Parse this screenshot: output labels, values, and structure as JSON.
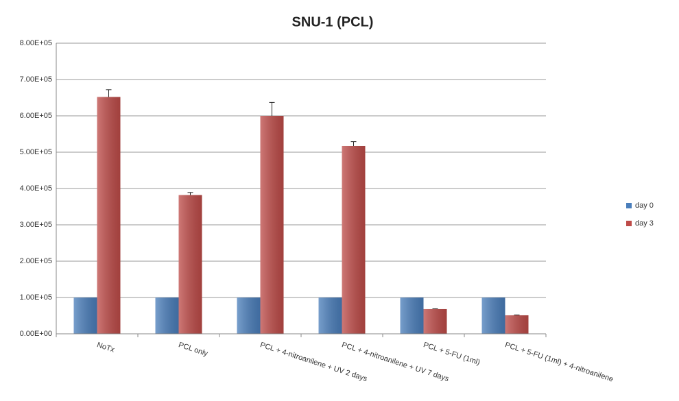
{
  "chart_data": {
    "type": "bar",
    "title": "SNU-1 (PCL)",
    "categories": [
      "NoTx",
      "PCL only",
      "PCL + 4-nitroanilene + UV 2 days",
      "PCL + 4-nitroanilene + UV 7 days",
      "PCL + 5-FU (1ml)",
      "PCL + 5-FU (1ml) + 4-nitroanilene"
    ],
    "series": [
      {
        "name": "day 0",
        "color": "#4a7ebb",
        "values": [
          100000,
          100000,
          100000,
          100000,
          100000,
          100000
        ]
      },
      {
        "name": "day 3",
        "color": "#be4b48",
        "values": [
          652000,
          382000,
          600000,
          517000,
          68000,
          51000
        ],
        "errors": [
          20000,
          7000,
          37000,
          12000,
          1000,
          1000
        ]
      }
    ],
    "ylim": [
      0,
      800000
    ],
    "yticks": [
      {
        "value": 0,
        "label": "0.00E+00"
      },
      {
        "value": 100000,
        "label": "1.00E+05"
      },
      {
        "value": 200000,
        "label": "2.00E+05"
      },
      {
        "value": 300000,
        "label": "3.00E+05"
      },
      {
        "value": 400000,
        "label": "4.00E+05"
      },
      {
        "value": 500000,
        "label": "5.00E+05"
      },
      {
        "value": 600000,
        "label": "6.00E+05"
      },
      {
        "value": 700000,
        "label": "7.00E+05"
      },
      {
        "value": 800000,
        "label": "8.00E+05"
      }
    ],
    "grid": true,
    "legend": "right"
  }
}
